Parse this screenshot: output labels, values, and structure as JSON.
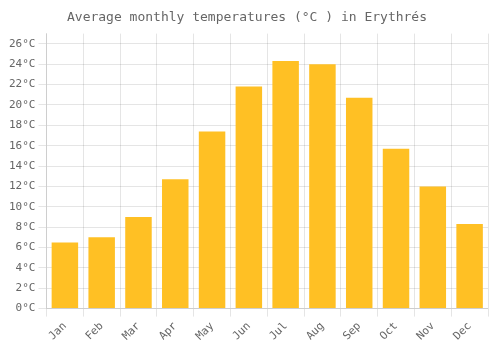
{
  "chart_data": {
    "type": "bar",
    "title": "Average monthly temperatures (°C ) in Erythrés",
    "categories": [
      "Jan",
      "Feb",
      "Mar",
      "Apr",
      "May",
      "Jun",
      "Jul",
      "Aug",
      "Sep",
      "Oct",
      "Nov",
      "Dec"
    ],
    "values": [
      6.5,
      7.0,
      9.0,
      12.7,
      17.4,
      21.8,
      24.3,
      24.0,
      20.7,
      15.7,
      12.0,
      8.3
    ],
    "color": "#FFC024",
    "ylim": [
      0,
      27
    ],
    "yticks": [
      {
        "value": 0,
        "label": "0°C"
      },
      {
        "value": 2,
        "label": "2°C"
      },
      {
        "value": 4,
        "label": "4°C"
      },
      {
        "value": 6,
        "label": "6°C"
      },
      {
        "value": 8,
        "label": "8°C"
      },
      {
        "value": 10,
        "label": "10°C"
      },
      {
        "value": 12,
        "label": "12°C"
      },
      {
        "value": 14,
        "label": "14°C"
      },
      {
        "value": 16,
        "label": "16°C"
      },
      {
        "value": 18,
        "label": "18°C"
      },
      {
        "value": 20,
        "label": "20°C"
      },
      {
        "value": 22,
        "label": "22°C"
      },
      {
        "value": 24,
        "label": "24°C"
      },
      {
        "value": 26,
        "label": "26°C"
      }
    ],
    "grid": true
  }
}
